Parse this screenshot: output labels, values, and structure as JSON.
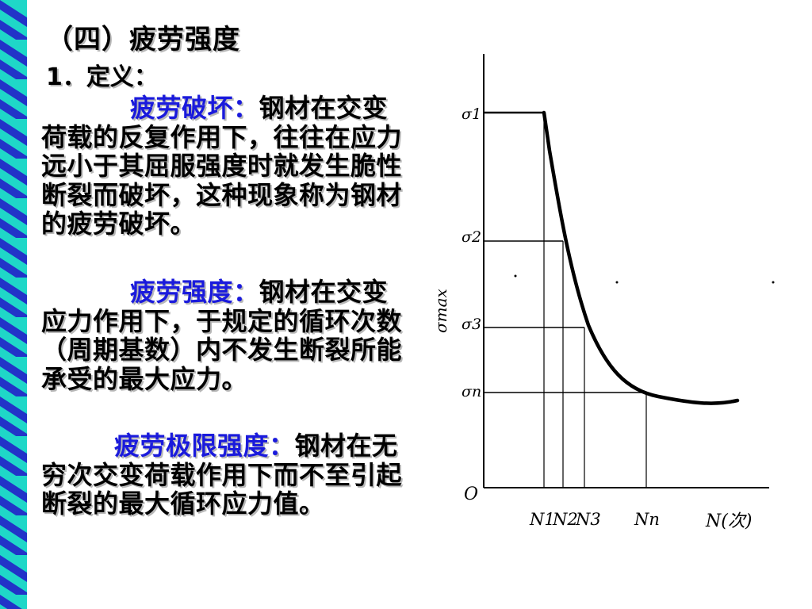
{
  "title": "（四）疲劳强度",
  "definition_heading": "1．定义：",
  "paragraphs": [
    {
      "term": "疲劳破坏：",
      "text": "钢材在交变荷载的反复作用下，往往在应力远小于其屈服强度时就发生脆性断裂而破坏，这种现象称为钢材的疲劳破坏。"
    },
    {
      "term": "疲劳强度：",
      "text": "钢材在交变应力作用下，于规定的循环次数（周期基数）内不发生断裂所能承受的最大应力。"
    },
    {
      "term": "疲劳极限强度：",
      "text": "钢材在无穷次交变荷载作用下而不至引起断裂的最大循环应力值。"
    }
  ],
  "colors": {
    "term": "#1a1adc",
    "stripe_blue": "#2233c8",
    "stripe_cyan": "#1fd7c8"
  },
  "chart_data": {
    "type": "line",
    "ylabel": "σmax",
    "xlabel": "N(次)",
    "origin_label": "O",
    "y_ticks": [
      "σ1",
      "σ2",
      "σ3",
      "σn"
    ],
    "x_ticks": [
      "N1",
      "N2",
      "N3",
      "Nn"
    ],
    "series": [
      {
        "values": []
      }
    ]
  }
}
